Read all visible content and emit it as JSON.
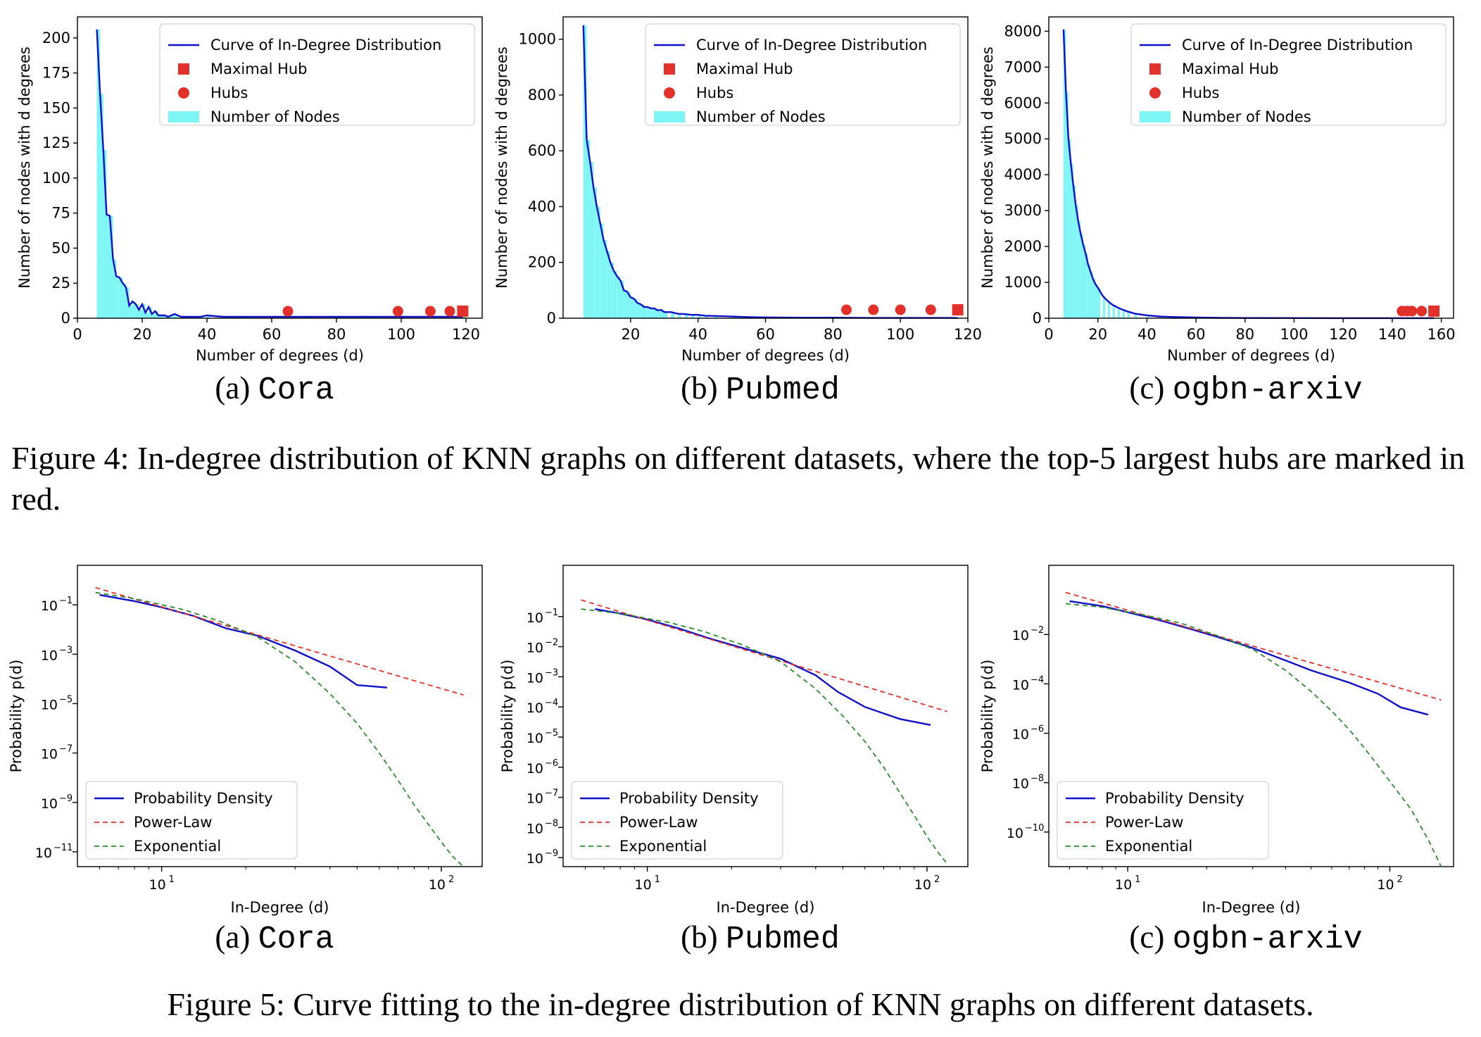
{
  "figure4": {
    "caption": "Figure 4: In-degree distribution of KNN graphs on different datasets, where the top-5 largest hubs are marked in red.",
    "legend": {
      "curve": "Curve of In-Degree Distribution",
      "maximal_hub": "Maximal Hub",
      "hubs": "Hubs",
      "nodes": "Number of Nodes"
    },
    "xlabel": "Number of degrees (d)",
    "ylabel": "Number of nodes with d degrees",
    "colors": {
      "bar": "#7ff6f6",
      "curve": "#1010c8",
      "hub": "#e2312a"
    }
  },
  "figure5": {
    "caption": "Figure 5: Curve fitting to the in-degree distribution of KNN graphs on different datasets.",
    "legend": {
      "density": "Probability Density",
      "power": "Power-Law",
      "expo": "Exponential"
    },
    "xlabel": "In-Degree (d)",
    "ylabel": "Probability p(d)",
    "colors": {
      "density": "#1010c8",
      "power": "#e2312a",
      "expo": "#2e8b2e"
    }
  },
  "subcaptions": [
    {
      "prefix": "(a)",
      "name": "Cora"
    },
    {
      "prefix": "(b)",
      "name": "Pubmed"
    },
    {
      "prefix": "(c)",
      "name": "ogbn-arxiv"
    }
  ],
  "chart_data": [
    {
      "type": "bar",
      "dataset": "Cora",
      "xlim": [
        0,
        125
      ],
      "ylim": [
        0,
        215
      ],
      "xticks": [
        0,
        20,
        40,
        60,
        80,
        100,
        120
      ],
      "yticks": [
        0,
        25,
        50,
        75,
        100,
        125,
        150,
        175,
        200
      ],
      "curve": {
        "x": [
          6,
          7,
          8,
          9,
          10,
          11,
          12,
          13,
          14,
          15,
          16,
          17,
          18,
          19,
          20,
          21,
          22,
          23,
          24,
          25,
          26,
          27,
          28,
          29,
          30,
          32,
          34,
          36,
          38,
          40,
          45,
          50,
          60,
          70,
          80,
          90,
          100,
          110,
          119
        ],
        "y": [
          206,
          160,
          120,
          74,
          73,
          42,
          30,
          29,
          25,
          22,
          9,
          12,
          10,
          6,
          10,
          4,
          8,
          3,
          5,
          2,
          2,
          2,
          1,
          2,
          3,
          1,
          1,
          1,
          1,
          2,
          1,
          1,
          1,
          1,
          1,
          1,
          1,
          1,
          1
        ]
      },
      "hubs": [
        {
          "x": 65,
          "y": 2
        },
        {
          "x": 99,
          "y": 2
        },
        {
          "x": 109,
          "y": 2
        },
        {
          "x": 115,
          "y": 2
        }
      ],
      "maximal_hub": {
        "x": 119,
        "y": 2
      }
    },
    {
      "type": "bar",
      "dataset": "Pubmed",
      "xlim": [
        0,
        120
      ],
      "ylim": [
        0,
        1080
      ],
      "xticks": [
        20,
        40,
        60,
        80,
        100,
        120
      ],
      "yticks": [
        0,
        200,
        400,
        600,
        800,
        1000
      ],
      "curve": {
        "x": [
          6,
          7,
          8,
          9,
          10,
          11,
          12,
          13,
          14,
          15,
          16,
          17,
          18,
          19,
          20,
          21,
          22,
          23,
          24,
          25,
          26,
          27,
          28,
          29,
          30,
          32,
          34,
          36,
          38,
          40,
          42,
          45,
          50,
          55,
          60,
          70,
          80,
          90,
          100,
          110,
          117
        ],
        "y": [
          1050,
          640,
          560,
          470,
          400,
          340,
          280,
          240,
          200,
          170,
          150,
          135,
          100,
          95,
          75,
          70,
          55,
          50,
          40,
          40,
          35,
          35,
          28,
          30,
          22,
          22,
          16,
          15,
          12,
          12,
          9,
          8,
          6,
          4,
          3,
          2,
          2,
          1,
          1,
          1,
          1
        ]
      },
      "hubs": [
        {
          "x": 84,
          "y": 15
        },
        {
          "x": 92,
          "y": 15
        },
        {
          "x": 100,
          "y": 15
        },
        {
          "x": 109,
          "y": 15
        }
      ],
      "maximal_hub": {
        "x": 117,
        "y": 15
      }
    },
    {
      "type": "bar",
      "dataset": "ogbn-arxiv",
      "xlim": [
        0,
        165
      ],
      "ylim": [
        0,
        8400
      ],
      "xticks": [
        0,
        20,
        40,
        60,
        80,
        100,
        120,
        140,
        160
      ],
      "yticks": [
        0,
        1000,
        2000,
        3000,
        4000,
        5000,
        6000,
        7000,
        8000
      ],
      "curve": {
        "x": [
          6,
          7,
          8,
          9,
          10,
          11,
          12,
          13,
          14,
          15,
          16,
          17,
          18,
          19,
          20,
          22,
          24,
          26,
          28,
          30,
          32,
          35,
          40,
          45,
          50,
          60,
          70,
          80,
          100,
          120,
          140,
          157
        ],
        "y": [
          8050,
          6300,
          5000,
          4300,
          3700,
          3150,
          2700,
          2350,
          2050,
          1800,
          1500,
          1300,
          1100,
          950,
          850,
          620,
          480,
          370,
          300,
          240,
          190,
          130,
          80,
          50,
          35,
          20,
          10,
          6,
          3,
          2,
          1,
          1
        ]
      },
      "hubs": [
        {
          "x": 144,
          "y": 80
        },
        {
          "x": 146,
          "y": 80
        },
        {
          "x": 148,
          "y": 80
        },
        {
          "x": 152,
          "y": 80
        }
      ],
      "maximal_hub": {
        "x": 157,
        "y": 80
      }
    },
    {
      "type": "line",
      "dataset": "Cora",
      "xscale": "log",
      "yscale": "log",
      "xlim": [
        5,
        140
      ],
      "ylim_exp": [
        -11.6,
        0.6
      ],
      "xticks": [
        10,
        100
      ],
      "xtick_labels": [
        "10^1",
        "10^2"
      ],
      "yticks_exp": [
        -1,
        -3,
        -5,
        -7,
        -9,
        -11
      ],
      "series": [
        {
          "name": "Probability Density",
          "x": [
            6,
            8,
            10,
            13,
            17,
            22,
            30,
            40,
            50,
            64
          ],
          "log10_y": [
            -0.6,
            -0.85,
            -1.1,
            -1.45,
            -1.95,
            -2.25,
            -2.85,
            -3.5,
            -4.25,
            -4.35
          ]
        },
        {
          "name": "Power-Law",
          "x": [
            5.8,
            120
          ],
          "log10_y": [
            -0.3,
            -4.65
          ]
        },
        {
          "name": "Exponential",
          "x": [
            5.8,
            8,
            12,
            16,
            22,
            30,
            40,
            50,
            60,
            70,
            80,
            90,
            100,
            110,
            120
          ],
          "log10_y": [
            -0.5,
            -0.75,
            -1.2,
            -1.65,
            -2.3,
            -3.3,
            -4.6,
            -5.8,
            -7.0,
            -8.1,
            -9.1,
            -9.9,
            -10.6,
            -11.2,
            -11.6
          ]
        }
      ]
    },
    {
      "type": "line",
      "dataset": "Pubmed",
      "xscale": "log",
      "yscale": "log",
      "xlim": [
        5,
        140
      ],
      "ylim_exp": [
        -9.3,
        0.7
      ],
      "xticks": [
        10,
        100
      ],
      "xtick_labels": [
        "10^1",
        "10^2"
      ],
      "yticks_exp": [
        -1,
        -2,
        -3,
        -4,
        -5,
        -6,
        -7,
        -8,
        -9
      ],
      "series": [
        {
          "name": "Probability Density",
          "x": [
            6.5,
            8,
            10,
            13,
            17,
            22,
            30,
            40,
            48,
            60,
            80,
            103
          ],
          "log10_y": [
            -0.75,
            -0.9,
            -1.1,
            -1.4,
            -1.75,
            -2.05,
            -2.4,
            -2.95,
            -3.5,
            -4.0,
            -4.4,
            -4.6
          ]
        },
        {
          "name": "Power-Law",
          "x": [
            5.8,
            118
          ],
          "log10_y": [
            -0.45,
            -4.15
          ]
        },
        {
          "name": "Exponential",
          "x": [
            5.8,
            8,
            12,
            16,
            22,
            30,
            40,
            50,
            60,
            70,
            80,
            90,
            100,
            110,
            118
          ],
          "log10_y": [
            -0.75,
            -0.9,
            -1.2,
            -1.5,
            -1.95,
            -2.5,
            -3.4,
            -4.3,
            -5.15,
            -6.0,
            -6.85,
            -7.6,
            -8.3,
            -8.85,
            -9.2
          ]
        }
      ]
    },
    {
      "type": "line",
      "dataset": "ogbn-arxiv",
      "xscale": "log",
      "yscale": "log",
      "xlim": [
        5,
        175
      ],
      "ylim_exp": [
        -11.4,
        0.8
      ],
      "xticks": [
        10,
        100
      ],
      "xtick_labels": [
        "10^1",
        "10^2"
      ],
      "yticks_exp": [
        -2,
        -4,
        -6,
        -8,
        -10
      ],
      "series": [
        {
          "name": "Probability Density",
          "x": [
            6,
            8,
            10,
            13,
            17,
            22,
            30,
            40,
            50,
            70,
            90,
            110,
            140
          ],
          "log10_y": [
            -0.65,
            -0.85,
            -1.1,
            -1.4,
            -1.75,
            -2.1,
            -2.55,
            -3.05,
            -3.45,
            -3.95,
            -4.4,
            -4.95,
            -5.25
          ]
        },
        {
          "name": "Power-Law",
          "x": [
            5.8,
            157
          ],
          "log10_y": [
            -0.3,
            -4.65
          ]
        },
        {
          "name": "Exponential",
          "x": [
            5.8,
            8,
            12,
            16,
            22,
            30,
            40,
            50,
            60,
            70,
            80,
            90,
            100,
            120,
            140,
            157
          ],
          "log10_y": [
            -0.75,
            -0.9,
            -1.25,
            -1.55,
            -2.05,
            -2.6,
            -3.45,
            -4.3,
            -5.1,
            -5.85,
            -6.6,
            -7.3,
            -7.95,
            -9.05,
            -10.3,
            -11.4
          ]
        }
      ]
    }
  ]
}
